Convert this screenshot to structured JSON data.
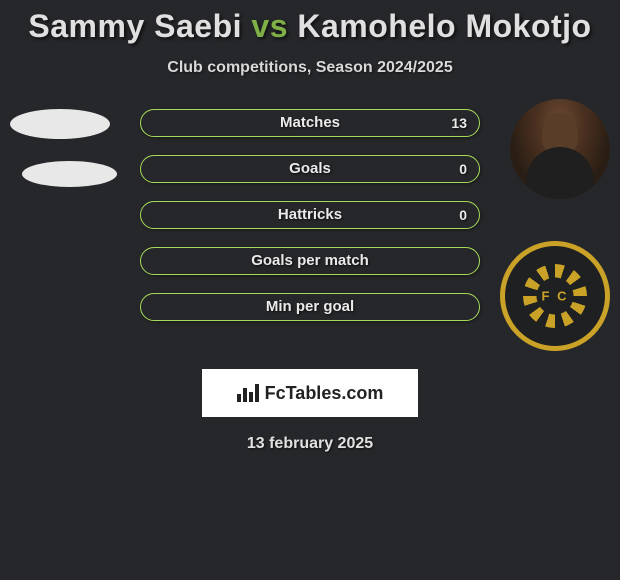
{
  "title": {
    "player1": "Sammy Saebi",
    "vs": "vs",
    "player2": "Kamohelo Mokotjo"
  },
  "subtitle": "Club competitions, Season 2024/2025",
  "stats": [
    {
      "label": "Matches",
      "right_value": "13"
    },
    {
      "label": "Goals",
      "right_value": "0"
    },
    {
      "label": "Hattricks",
      "right_value": "0"
    },
    {
      "label": "Goals per match",
      "right_value": ""
    },
    {
      "label": "Min per goal",
      "right_value": ""
    }
  ],
  "site_badge": {
    "text": "FcTables.com"
  },
  "date": "13 february 2025",
  "colors": {
    "background": "#26272a",
    "accent_green": "#7fb047",
    "bar_border": "#a6db5a",
    "club_gold": "#c9a227",
    "text": "#e0e0e0"
  }
}
